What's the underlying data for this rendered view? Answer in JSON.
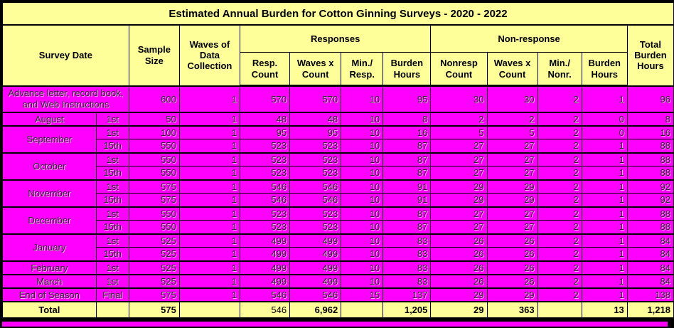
{
  "title": "Estimated Annual Burden for Cotton Ginning Surveys - 2020 - 2022",
  "colors": {
    "header_bg": "#ffff99",
    "row_bg": "#ff00ff",
    "border": "#000000",
    "bottom_strip": "#ff00ff"
  },
  "header": {
    "survey_date": "Survey Date",
    "sample_size": "Sample Size",
    "waves_of_data_collection": "Waves of Data Collection",
    "responses": "Responses",
    "non_response": "Non-response",
    "total_burden_hours": "Total Burden Hours",
    "resp_count": "Resp. Count",
    "waves_x_count": "Waves x Count",
    "min_resp": "Min./ Resp.",
    "burden_hours": "Burden Hours",
    "nonresp_count": "Nonresp Count",
    "waves_x_count_2": "Waves x Count",
    "min_nonr": "Min./ Nonr.",
    "burden_hours_2": "Burden Hours"
  },
  "table": {
    "rows": [
      {
        "cls": "r-tall gs",
        "cells": [
          {
            "t": "Advance letter, record book, and Web Instructions",
            "cs": 2,
            "cls": "txt wrap",
            "n": "cell-survey-date"
          },
          {
            "t": "600"
          },
          {
            "t": "1"
          },
          {
            "t": "570"
          },
          {
            "t": "570"
          },
          {
            "t": "10"
          },
          {
            "t": "95"
          },
          {
            "t": "30"
          },
          {
            "t": "30"
          },
          {
            "t": "2"
          },
          {
            "t": "1"
          },
          {
            "t": "96"
          }
        ]
      },
      {
        "cls": "gs",
        "cells": [
          {
            "t": "August",
            "cls": "txt",
            "n": "cell-month"
          },
          {
            "t": "1st",
            "cls": "txt",
            "n": "cell-wave-date"
          },
          {
            "t": "50"
          },
          {
            "t": "1"
          },
          {
            "t": "48"
          },
          {
            "t": "48"
          },
          {
            "t": "10"
          },
          {
            "t": "8"
          },
          {
            "t": "2"
          },
          {
            "t": "2"
          },
          {
            "t": "2"
          },
          {
            "t": "0"
          },
          {
            "t": "8"
          }
        ]
      },
      {
        "cls": "gs",
        "cells": [
          {
            "t": "September",
            "rs": 2,
            "cls": "txt",
            "n": "cell-month"
          },
          {
            "t": "1st",
            "cls": "txt",
            "n": "cell-wave-date"
          },
          {
            "t": "100"
          },
          {
            "t": "1"
          },
          {
            "t": "95"
          },
          {
            "t": "95"
          },
          {
            "t": "10"
          },
          {
            "t": "16"
          },
          {
            "t": "5"
          },
          {
            "t": "5"
          },
          {
            "t": "2"
          },
          {
            "t": "0"
          },
          {
            "t": "16"
          }
        ]
      },
      {
        "cells": [
          {
            "t": "15th",
            "cls": "txt",
            "n": "cell-wave-date"
          },
          {
            "t": "550"
          },
          {
            "t": "1"
          },
          {
            "t": "523"
          },
          {
            "t": "523"
          },
          {
            "t": "10"
          },
          {
            "t": "87"
          },
          {
            "t": "27"
          },
          {
            "t": "27"
          },
          {
            "t": "2"
          },
          {
            "t": "1"
          },
          {
            "t": "88"
          }
        ]
      },
      {
        "cls": "gs",
        "cells": [
          {
            "t": "October",
            "rs": 2,
            "cls": "txt",
            "n": "cell-month"
          },
          {
            "t": "1st",
            "cls": "txt",
            "n": "cell-wave-date"
          },
          {
            "t": "550"
          },
          {
            "t": "1"
          },
          {
            "t": "523"
          },
          {
            "t": "523"
          },
          {
            "t": "10"
          },
          {
            "t": "87"
          },
          {
            "t": "27"
          },
          {
            "t": "27"
          },
          {
            "t": "2"
          },
          {
            "t": "1"
          },
          {
            "t": "88"
          }
        ]
      },
      {
        "cells": [
          {
            "t": "15th",
            "cls": "txt",
            "n": "cell-wave-date"
          },
          {
            "t": "550"
          },
          {
            "t": "1"
          },
          {
            "t": "523"
          },
          {
            "t": "523"
          },
          {
            "t": "10"
          },
          {
            "t": "87"
          },
          {
            "t": "27"
          },
          {
            "t": "27"
          },
          {
            "t": "2"
          },
          {
            "t": "1"
          },
          {
            "t": "88"
          }
        ]
      },
      {
        "cls": "gs",
        "cells": [
          {
            "t": "November",
            "rs": 2,
            "cls": "txt",
            "n": "cell-month"
          },
          {
            "t": "1st",
            "cls": "txt",
            "n": "cell-wave-date"
          },
          {
            "t": "575"
          },
          {
            "t": "1"
          },
          {
            "t": "546"
          },
          {
            "t": "546"
          },
          {
            "t": "10"
          },
          {
            "t": "91"
          },
          {
            "t": "29"
          },
          {
            "t": "29"
          },
          {
            "t": "2"
          },
          {
            "t": "1"
          },
          {
            "t": "92"
          }
        ]
      },
      {
        "cells": [
          {
            "t": "15th",
            "cls": "txt",
            "n": "cell-wave-date"
          },
          {
            "t": "575"
          },
          {
            "t": "1"
          },
          {
            "t": "546"
          },
          {
            "t": "546"
          },
          {
            "t": "10"
          },
          {
            "t": "91"
          },
          {
            "t": "29"
          },
          {
            "t": "29"
          },
          {
            "t": "2"
          },
          {
            "t": "1"
          },
          {
            "t": "92"
          }
        ]
      },
      {
        "cls": "gs",
        "cells": [
          {
            "t": "December",
            "rs": 2,
            "cls": "txt",
            "n": "cell-month"
          },
          {
            "t": "1st",
            "cls": "txt",
            "n": "cell-wave-date"
          },
          {
            "t": "550"
          },
          {
            "t": "1"
          },
          {
            "t": "523"
          },
          {
            "t": "523"
          },
          {
            "t": "10"
          },
          {
            "t": "87"
          },
          {
            "t": "27"
          },
          {
            "t": "27"
          },
          {
            "t": "2"
          },
          {
            "t": "1"
          },
          {
            "t": "88"
          }
        ]
      },
      {
        "cells": [
          {
            "t": "15th",
            "cls": "txt",
            "n": "cell-wave-date"
          },
          {
            "t": "550"
          },
          {
            "t": "1"
          },
          {
            "t": "523"
          },
          {
            "t": "523"
          },
          {
            "t": "10"
          },
          {
            "t": "87"
          },
          {
            "t": "27"
          },
          {
            "t": "27"
          },
          {
            "t": "2"
          },
          {
            "t": "1"
          },
          {
            "t": "88"
          }
        ]
      },
      {
        "cls": "gs",
        "cells": [
          {
            "t": "January",
            "rs": 2,
            "cls": "txt",
            "n": "cell-month"
          },
          {
            "t": "1st",
            "cls": "txt",
            "n": "cell-wave-date"
          },
          {
            "t": "525"
          },
          {
            "t": "1"
          },
          {
            "t": "499"
          },
          {
            "t": "499"
          },
          {
            "t": "10"
          },
          {
            "t": "83"
          },
          {
            "t": "26"
          },
          {
            "t": "26"
          },
          {
            "t": "2"
          },
          {
            "t": "1"
          },
          {
            "t": "84"
          }
        ]
      },
      {
        "cells": [
          {
            "t": "15th",
            "cls": "txt",
            "n": "cell-wave-date"
          },
          {
            "t": "525"
          },
          {
            "t": "1"
          },
          {
            "t": "499"
          },
          {
            "t": "499"
          },
          {
            "t": "10"
          },
          {
            "t": "83"
          },
          {
            "t": "26"
          },
          {
            "t": "26"
          },
          {
            "t": "2"
          },
          {
            "t": "1"
          },
          {
            "t": "84"
          }
        ]
      },
      {
        "cls": "gs",
        "cells": [
          {
            "t": "February",
            "cls": "txt",
            "n": "cell-month"
          },
          {
            "t": "1st",
            "cls": "txt",
            "n": "cell-wave-date"
          },
          {
            "t": "525"
          },
          {
            "t": "1"
          },
          {
            "t": "499"
          },
          {
            "t": "499"
          },
          {
            "t": "10"
          },
          {
            "t": "83"
          },
          {
            "t": "26"
          },
          {
            "t": "26"
          },
          {
            "t": "2"
          },
          {
            "t": "1"
          },
          {
            "t": "84"
          }
        ]
      },
      {
        "cls": "gs",
        "cells": [
          {
            "t": "March",
            "cls": "txt",
            "n": "cell-month"
          },
          {
            "t": "1st",
            "cls": "txt",
            "n": "cell-wave-date"
          },
          {
            "t": "525"
          },
          {
            "t": "1"
          },
          {
            "t": "499"
          },
          {
            "t": "499"
          },
          {
            "t": "10"
          },
          {
            "t": "83"
          },
          {
            "t": "26"
          },
          {
            "t": "26"
          },
          {
            "t": "2"
          },
          {
            "t": "1"
          },
          {
            "t": "84"
          }
        ]
      },
      {
        "cls": "gs",
        "cells": [
          {
            "t": "End of Season",
            "cls": "txt",
            "n": "cell-month"
          },
          {
            "t": "Final",
            "cls": "txt",
            "n": "cell-wave-date"
          },
          {
            "t": "575"
          },
          {
            "t": "1"
          },
          {
            "t": "546"
          },
          {
            "t": "546"
          },
          {
            "t": "15"
          },
          {
            "t": "137"
          },
          {
            "t": "29"
          },
          {
            "t": "29"
          },
          {
            "t": "2"
          },
          {
            "t": "1"
          },
          {
            "t": "138"
          }
        ]
      },
      {
        "cls": "r-total",
        "cells": [
          {
            "t": "Total",
            "cls": "txt",
            "n": "cell-total-label"
          },
          {
            "t": "",
            "cls": "txt"
          },
          {
            "t": "575"
          },
          {
            "t": ""
          },
          {
            "t": "546",
            "cls": "reg"
          },
          {
            "t": "6,962"
          },
          {
            "t": ""
          },
          {
            "t": "1,205"
          },
          {
            "t": "29"
          },
          {
            "t": "363"
          },
          {
            "t": ""
          },
          {
            "t": "13"
          },
          {
            "t": "1,218"
          }
        ]
      }
    ]
  }
}
